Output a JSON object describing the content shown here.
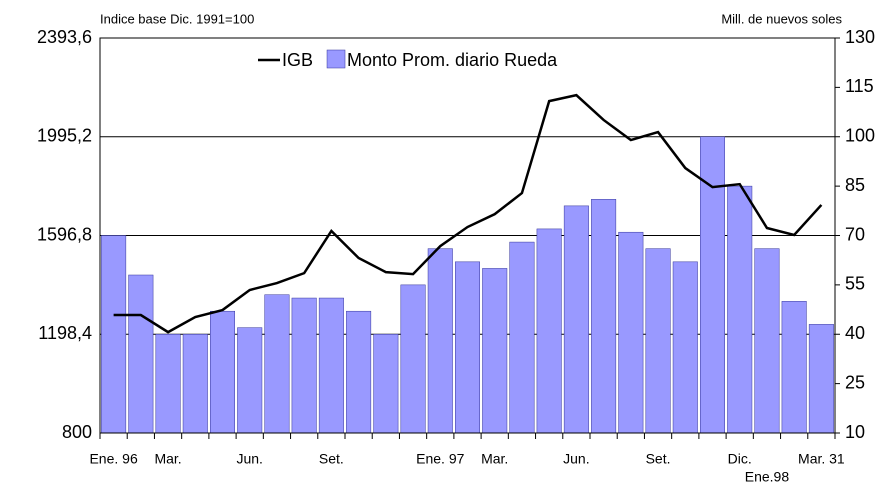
{
  "chart_data": {
    "type": "bar-line",
    "y_label": "Indice base Dic. 1991=100",
    "y2_label": "Mill. de nuevos soles",
    "categories": [
      "Ene. 96",
      null,
      "Mar.",
      null,
      null,
      "Jun.",
      null,
      null,
      "Set.",
      null,
      null,
      null,
      "Ene. 97",
      null,
      "Mar.",
      null,
      null,
      "Jun.",
      null,
      null,
      "Set.",
      null,
      null,
      "Dic.",
      "Ene.98",
      null,
      "Mar. 31"
    ],
    "series": [
      {
        "name": "IGB",
        "type": "line",
        "color": "#000000",
        "axis": "y",
        "values": [
          1276,
          1276,
          1207,
          1268,
          1296,
          1377,
          1405,
          1445,
          1615,
          1506,
          1449,
          1441,
          1554,
          1631,
          1683,
          1768,
          2139,
          2163,
          2063,
          1982,
          2014,
          1869,
          1792,
          1804,
          1627,
          1599,
          1720
        ]
      },
      {
        "name": "Monto Prom. diario Rueda",
        "type": "bar",
        "color": "#9999ff",
        "axis": "y2",
        "values": [
          70,
          58,
          40,
          40,
          47,
          42,
          52,
          51,
          51,
          47,
          40,
          55,
          66,
          62,
          60,
          68,
          72,
          79,
          81,
          71,
          66,
          62,
          100,
          85,
          66,
          50,
          43
        ]
      }
    ],
    "ylim": [
      800,
      2393.6
    ],
    "yticks": [
      800,
      {
        "value": 1198.4,
        "label": "1198,4"
      },
      {
        "value": 1596.8,
        "label": "1596,8"
      },
      {
        "value": 1995.2,
        "label": "1995,2"
      },
      {
        "value": 2393.6,
        "label": "2393,6"
      }
    ],
    "y2lim": [
      10,
      130
    ],
    "y2ticks": [
      10,
      25,
      40,
      55,
      70,
      85,
      100,
      115,
      130
    ],
    "grid": true
  }
}
